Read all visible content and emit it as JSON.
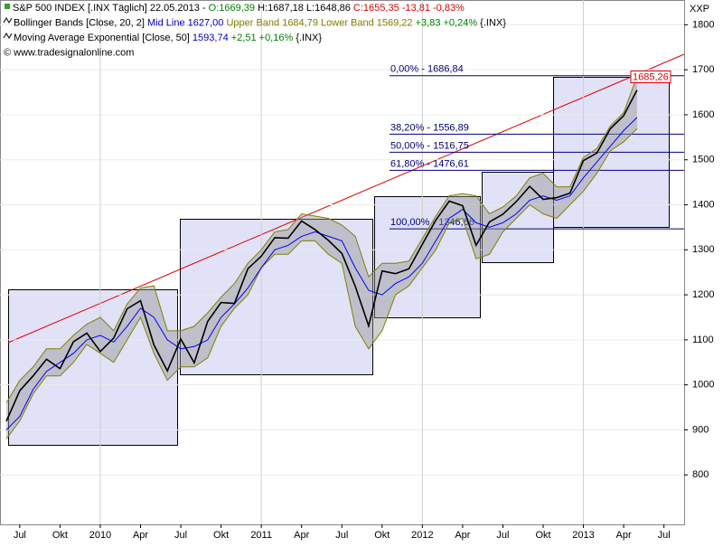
{
  "header": {
    "lines": [
      [
        {
          "text": "S&P 500 INDEX [.INX  Täglich] 22.05.2013 - ",
          "color": "#000000"
        },
        {
          "text": "O:1669,39",
          "color": "#008000"
        },
        {
          "text": " H:1687,18 L:1648,86 ",
          "color": "#000000"
        },
        {
          "text": "C:1655,35 -13,81 -0,83%",
          "color": "#e00000"
        }
      ],
      [
        {
          "text": "Bollinger Bands [Close, 20, 2] ",
          "color": "#000000"
        },
        {
          "text": "Mid Line 1627,00 ",
          "color": "#0000c0"
        },
        {
          "text": "Upper Band 1684,79 Lower Band 1569,22 ",
          "color": "#808000"
        },
        {
          "text": "+3,83 +0,24% ",
          "color": "#008000"
        },
        {
          "text": "{.INX}",
          "color": "#000000"
        }
      ],
      [
        {
          "text": "Moving Average Exponential [Close, 50] ",
          "color": "#000000"
        },
        {
          "text": "1593,74 ",
          "color": "#0000c0"
        },
        {
          "text": "+2,51 +0,16% ",
          "color": "#008000"
        },
        {
          "text": "{.INX}",
          "color": "#000000"
        }
      ],
      [
        {
          "text": "© www.tradesignalonline.com",
          "color": "#000000"
        }
      ]
    ]
  },
  "chart_data": {
    "type": "line",
    "axis_title": "XXP",
    "categories": [
      null,
      "Jul",
      null,
      null,
      "Okt",
      null,
      null,
      "2010",
      null,
      null,
      "Apr",
      null,
      null,
      "Jul",
      null,
      null,
      "Okt",
      null,
      null,
      "2011",
      null,
      null,
      "Apr",
      null,
      null,
      "Jul",
      null,
      null,
      "Okt",
      null,
      null,
      "2012",
      null,
      null,
      "Apr",
      null,
      null,
      "Jul",
      null,
      null,
      "Okt",
      null,
      null,
      "2013",
      null,
      null,
      "Apr",
      null,
      null,
      "Jul"
    ],
    "series": [
      {
        "name": "Close",
        "color": "#000000",
        "values": [
          919,
          987,
          1020,
          1057,
          1036,
          1096,
          1115,
          1074,
          1104,
          1169,
          1187,
          1089,
          1031,
          1102,
          1049,
          1141,
          1183,
          1181,
          1258,
          1286,
          1327,
          1326,
          1364,
          1345,
          1321,
          1292,
          1219,
          1131,
          1253,
          1247,
          1258,
          1312,
          1366,
          1408,
          1398,
          1310,
          1362,
          1379,
          1407,
          1441,
          1412,
          1416,
          1426,
          1498,
          1515,
          1569,
          1598,
          1655,
          null,
          null
        ]
      },
      {
        "name": "Upper Band",
        "color": "#808000",
        "values": [
          960,
          1010,
          1040,
          1080,
          1080,
          1110,
          1135,
          1150,
          1120,
          1180,
          1215,
          1220,
          1120,
          1120,
          1130,
          1160,
          1195,
          1225,
          1270,
          1300,
          1340,
          1345,
          1380,
          1375,
          1370,
          1355,
          1330,
          1240,
          1270,
          1270,
          1275,
          1325,
          1375,
          1420,
          1425,
          1420,
          1380,
          1395,
          1420,
          1460,
          1470,
          1440,
          1440,
          1505,
          1525,
          1575,
          1605,
          1685,
          null,
          null
        ]
      },
      {
        "name": "Lower Band",
        "color": "#808000",
        "values": [
          880,
          920,
          980,
          1020,
          1020,
          1050,
          1090,
          1070,
          1050,
          1100,
          1150,
          1070,
          1010,
          1040,
          1040,
          1060,
          1130,
          1170,
          1200,
          1260,
          1290,
          1290,
          1320,
          1320,
          1290,
          1270,
          1130,
          1080,
          1120,
          1200,
          1220,
          1260,
          1300,
          1360,
          1370,
          1280,
          1290,
          1340,
          1370,
          1400,
          1380,
          1370,
          1400,
          1430,
          1470,
          1520,
          1540,
          1569,
          null,
          null
        ]
      },
      {
        "name": "EMA 50",
        "color": "#0000ff",
        "values": [
          900,
          930,
          990,
          1030,
          1050,
          1070,
          1100,
          1110,
          1095,
          1130,
          1170,
          1150,
          1100,
          1080,
          1085,
          1100,
          1150,
          1180,
          1215,
          1260,
          1300,
          1310,
          1330,
          1340,
          1330,
          1320,
          1260,
          1210,
          1200,
          1225,
          1240,
          1270,
          1320,
          1370,
          1390,
          1360,
          1350,
          1360,
          1380,
          1410,
          1420,
          1410,
          1420,
          1460,
          1495,
          1530,
          1565,
          1594,
          null,
          null
        ]
      }
    ],
    "fib_levels": [
      {
        "label": "0,00% - 1686,84",
        "value": 1686.84
      },
      {
        "label": "38,20% - 1556,89",
        "value": 1556.89
      },
      {
        "label": "50,00% - 1516,75",
        "value": 1516.75
      },
      {
        "label": "61,80% - 1476,61",
        "value": 1476.61
      },
      {
        "label": "100,00% - 1346,66",
        "value": 1346.66
      }
    ],
    "last_price": {
      "label": "1685,26",
      "value": 1685.26,
      "color": "#e00000"
    },
    "ylim": [
      690,
      1855
    ],
    "yticks": [
      800,
      900,
      1000,
      1100,
      1200,
      1300,
      1400,
      1500,
      1600,
      1700,
      1800
    ],
    "grid": true
  }
}
